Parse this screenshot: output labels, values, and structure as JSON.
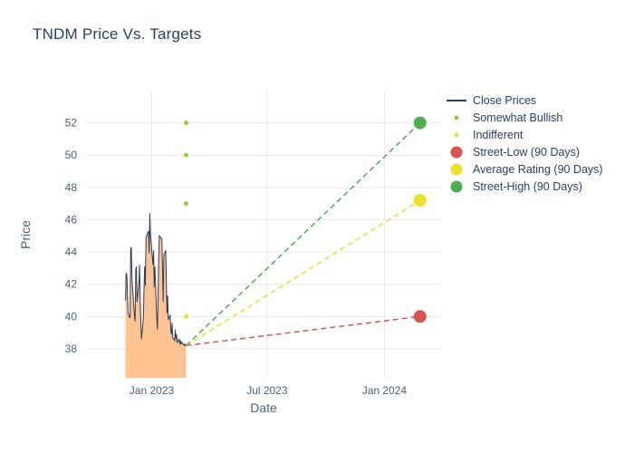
{
  "page": {
    "background": "#ffffff"
  },
  "chart_data": {
    "type": "line",
    "title": "TNDM Price Vs. Targets",
    "xlabel": "Date",
    "ylabel": "Price",
    "xlim": [
      "2022-09-20",
      "2024-03-30"
    ],
    "ylim": [
      36.2,
      54.0
    ],
    "grid": true,
    "legend_position": "right",
    "x_ticks": [
      {
        "date": "2023-01-01",
        "label": "Jan 2023"
      },
      {
        "date": "2023-07-01",
        "label": "Jul 2023"
      },
      {
        "date": "2024-01-01",
        "label": "Jan 2024"
      }
    ],
    "y_ticks": [
      38,
      40,
      42,
      44,
      46,
      48,
      50,
      52
    ],
    "series": [
      {
        "name": "Close Prices",
        "type": "area-line",
        "color": "#2a3f5f",
        "fill": "#ffb77e",
        "fill_opacity": 0.85,
        "x": [
          "2022-11-21",
          "2022-11-22",
          "2022-11-23",
          "2022-11-25",
          "2022-11-28",
          "2022-11-29",
          "2022-11-30",
          "2022-12-01",
          "2022-12-02",
          "2022-12-05",
          "2022-12-06",
          "2022-12-07",
          "2022-12-08",
          "2022-12-09",
          "2022-12-12",
          "2022-12-13",
          "2022-12-14",
          "2022-12-15",
          "2022-12-16",
          "2022-12-19",
          "2022-12-20",
          "2022-12-21",
          "2022-12-22",
          "2022-12-23",
          "2022-12-27",
          "2022-12-28",
          "2022-12-29",
          "2022-12-30",
          "2023-01-03",
          "2023-01-04",
          "2023-01-05",
          "2023-01-06",
          "2023-01-09",
          "2023-01-10",
          "2023-01-11",
          "2023-01-12",
          "2023-01-13",
          "2023-01-17",
          "2023-01-18",
          "2023-01-19",
          "2023-01-20",
          "2023-01-23",
          "2023-01-24",
          "2023-01-25",
          "2023-01-26",
          "2023-01-27",
          "2023-01-30",
          "2023-01-31",
          "2023-02-01",
          "2023-02-02",
          "2023-02-03",
          "2023-02-06",
          "2023-02-07",
          "2023-02-08",
          "2023-02-09",
          "2023-02-10",
          "2023-02-13",
          "2023-02-14",
          "2023-02-15",
          "2023-02-16",
          "2023-02-17",
          "2023-02-21",
          "2023-02-22",
          "2023-02-23",
          "2023-02-24"
        ],
        "y": [
          41.0,
          42.7,
          42.6,
          40.2,
          39.9,
          44.2,
          44.3,
          42.4,
          41.8,
          40.0,
          39.7,
          42.9,
          43.1,
          40.9,
          42.1,
          43.2,
          41.0,
          39.7,
          38.6,
          39.9,
          41.6,
          43.1,
          41.9,
          44.9,
          45.3,
          43.9,
          46.4,
          45.1,
          43.2,
          44.1,
          41.8,
          43.1,
          39.9,
          39.2,
          41.1,
          43.6,
          45.0,
          44.8,
          42.9,
          40.9,
          43.8,
          44.1,
          42.0,
          40.2,
          41.3,
          39.8,
          40.1,
          39.1,
          38.9,
          39.6,
          38.7,
          38.5,
          39.2,
          38.6,
          38.9,
          38.4,
          38.6,
          38.3,
          38.5,
          38.3,
          38.4,
          38.2,
          38.3,
          38.2,
          38.2
        ]
      },
      {
        "name": "Somewhat Bullish",
        "type": "scatter",
        "color": "#97cc3f",
        "marker_radius": 2.5,
        "x": [
          "2023-02-24",
          "2023-02-24",
          "2023-02-24"
        ],
        "y": [
          52,
          50,
          47
        ]
      },
      {
        "name": "Indifferent",
        "type": "scatter",
        "color": "#e3e43b",
        "marker_radius": 2.5,
        "x": [
          "2023-02-24"
        ],
        "y": [
          40
        ]
      },
      {
        "name": "Street-Low (90 Days)",
        "type": "target",
        "color": "#d9544f",
        "dash": "6 4",
        "marker_radius": 7,
        "x": [
          "2023-02-24",
          "2024-02-26"
        ],
        "y": [
          38.2,
          40.0
        ]
      },
      {
        "name": "Average Rating (90 Days)",
        "type": "target",
        "color": "#e9e229",
        "dash": "6 4",
        "marker_radius": 7,
        "x": [
          "2023-02-24",
          "2024-02-26"
        ],
        "y": [
          38.2,
          47.2
        ]
      },
      {
        "name": "Street-High (90 Days)",
        "type": "target",
        "color": "#4cae50",
        "dash": "6 4",
        "marker_radius": 7,
        "x": [
          "2023-02-24",
          "2024-02-26"
        ],
        "y": [
          38.2,
          52.0
        ]
      }
    ]
  }
}
